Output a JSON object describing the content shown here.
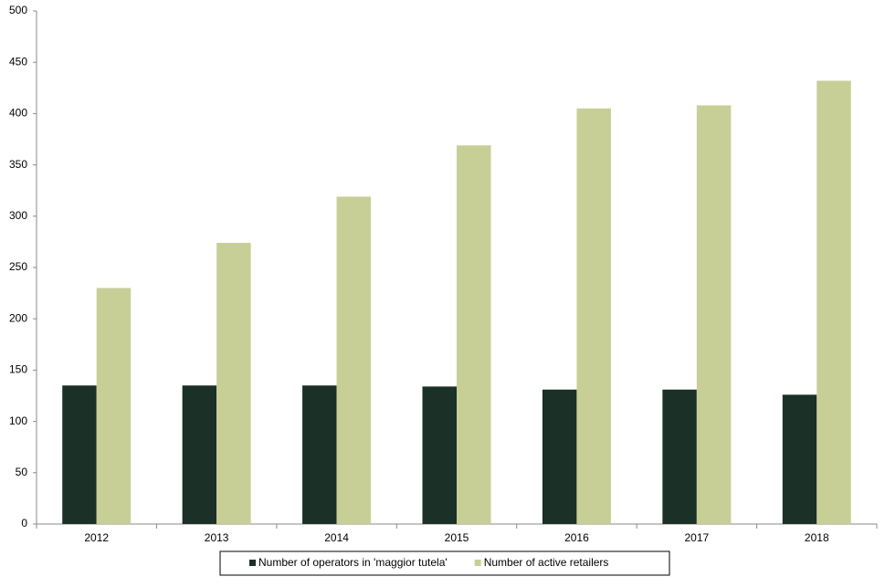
{
  "chart_data": {
    "type": "bar",
    "categories": [
      "2012",
      "2013",
      "2014",
      "2015",
      "2016",
      "2017",
      "2018"
    ],
    "series": [
      {
        "name": "Number of operators in 'maggior tutela'",
        "color": "#1b3026",
        "values": [
          135,
          135,
          135,
          134,
          131,
          131,
          126
        ]
      },
      {
        "name": "Number of active retailers",
        "color": "#c8cf96",
        "values": [
          230,
          274,
          319,
          369,
          405,
          408,
          432
        ]
      }
    ],
    "ylim": [
      0,
      500
    ],
    "yticks": [
      0,
      50,
      100,
      150,
      200,
      250,
      300,
      350,
      400,
      450,
      500
    ],
    "grid": false,
    "legend": "bottom"
  }
}
